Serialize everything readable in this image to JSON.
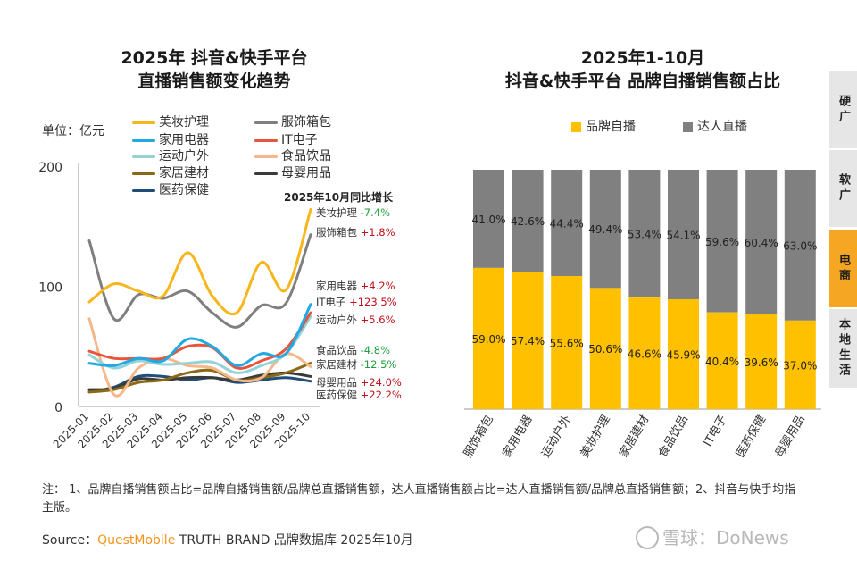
{
  "left_chart": {
    "title_line1": "2025年 抖音&快手平台",
    "title_line2": "直播销售额变化趋势",
    "unit_label": "单位：亿元",
    "growth_title": "2025年10月同比增长"
  },
  "right_chart": {
    "title_line1": "2025年1-10月",
    "title_line2": "抖音&快手平台 品牌自播销售额占比",
    "legend": [
      {
        "label": "品牌自播",
        "color": "#FFC000"
      },
      {
        "label": "达人直播",
        "color": "#808080"
      }
    ]
  },
  "sidebar": {
    "tabs": [
      {
        "label": "硬广",
        "active": false
      },
      {
        "label": "软广",
        "active": false
      },
      {
        "label": "电商",
        "active": true
      },
      {
        "label": "本地生活",
        "active": false
      }
    ]
  },
  "footer": {
    "note": "注：   1、品牌自播销售额占比=品牌自播销售额/品牌总直播销售额，达人直播销售额占比=达人直播销售额/品牌总直播销售额；2、抖音与快手均指主版。",
    "source_prefix": "Source：",
    "source_brand": "QuestMobile",
    "source_rest": " TRUTH BRAND 品牌数据库 2025年10月",
    "watermark": "雪球：DoNews"
  },
  "colors": {
    "accent_orange": "#F7941D",
    "growth_up": "#C0101A",
    "growth_down": "#1E9E3C"
  },
  "chart_data": [
    {
      "type": "line",
      "title": "2025年 抖音&快手平台 直播销售额变化趋势",
      "ylabel": "单位：亿元",
      "ylim": [
        0,
        200
      ],
      "yticks": [
        0,
        100,
        200
      ],
      "x": [
        "2025-01",
        "2025-02",
        "2025-03",
        "2025-04",
        "2025-05",
        "2025-06",
        "2025-07",
        "2025-08",
        "2025-09",
        "2025-10"
      ],
      "legend_position": "top-left",
      "series": [
        {
          "name": "美妆护理",
          "color": "#F7B61B",
          "values": [
            87,
            102,
            96,
            92,
            128,
            92,
            78,
            120,
            97,
            164
          ],
          "growth": "-7.4%",
          "growth_dir": "down"
        },
        {
          "name": "服饰箱包",
          "color": "#7F7F7F",
          "values": [
            138,
            73,
            93,
            90,
            96,
            78,
            66,
            84,
            86,
            143
          ],
          "growth": "+1.8%",
          "growth_dir": "up"
        },
        {
          "name": "家用电器",
          "color": "#21A9E1",
          "values": [
            36,
            34,
            40,
            38,
            56,
            50,
            34,
            44,
            44,
            85
          ],
          "growth": "+4.2%",
          "growth_dir": "up"
        },
        {
          "name": "IT电子",
          "color": "#E8553D",
          "values": [
            46,
            40,
            40,
            40,
            50,
            49,
            32,
            38,
            48,
            78
          ],
          "growth": "+123.5%",
          "growth_dir": "up"
        },
        {
          "name": "运动户外",
          "color": "#93D2D8",
          "values": [
            43,
            32,
            38,
            35,
            36,
            37,
            28,
            34,
            44,
            75
          ],
          "growth": "+5.6%",
          "growth_dir": "up"
        },
        {
          "name": "食品饮品",
          "color": "#F5B88A",
          "values": [
            73,
            10,
            32,
            40,
            34,
            32,
            22,
            24,
            44,
            33
          ],
          "growth": "-4.8%",
          "growth_dir": "down"
        },
        {
          "name": "家居建材",
          "color": "#8B6914",
          "values": [
            12,
            14,
            20,
            22,
            28,
            30,
            22,
            24,
            28,
            36
          ],
          "growth": "-12.5%",
          "growth_dir": "down"
        },
        {
          "name": "母婴用品",
          "color": "#3A3A3A",
          "values": [
            14,
            15,
            23,
            22,
            24,
            24,
            22,
            26,
            28,
            25
          ],
          "growth": "+24.0%",
          "growth_dir": "up"
        },
        {
          "name": "医药保健",
          "color": "#1F4E79",
          "values": [
            12,
            16,
            25,
            25,
            22,
            24,
            20,
            22,
            24,
            21
          ],
          "growth": "+22.2%",
          "growth_dir": "up"
        }
      ]
    },
    {
      "type": "bar",
      "stacked": true,
      "title": "2025年1-10月 抖音&快手平台 品牌自播销售额占比",
      "categories": [
        "服饰箱包",
        "家用电器",
        "运动户外",
        "美妆护理",
        "家居建材",
        "食品饮品",
        "IT电子",
        "医药保健",
        "母婴用品"
      ],
      "ylim": [
        0,
        100
      ],
      "legend_position": "top",
      "series": [
        {
          "name": "品牌自播",
          "color": "#FFC000",
          "values": [
            59.0,
            57.4,
            55.6,
            50.6,
            46.6,
            45.9,
            40.4,
            39.6,
            37.0
          ],
          "labels": [
            "59.0%",
            "57.4%",
            "55.6%",
            "50.6%",
            "46.6%",
            "45.9%",
            "40.4%",
            "39.6%",
            "37.0%"
          ]
        },
        {
          "name": "达人直播",
          "color": "#808080",
          "values": [
            41.0,
            42.6,
            44.4,
            49.4,
            53.4,
            54.1,
            59.6,
            60.4,
            63.0
          ],
          "labels": [
            "41.0%",
            "42.6%",
            "44.4%",
            "49.4%",
            "53.4%",
            "54.1%",
            "59.6%",
            "60.4%",
            "63.0%"
          ]
        }
      ]
    }
  ]
}
